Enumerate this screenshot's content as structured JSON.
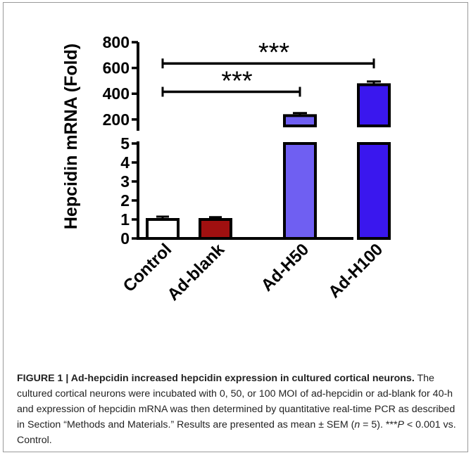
{
  "chart_data": {
    "type": "bar",
    "ylabel": "Hepcidin mRNA (Fold)",
    "categories": [
      "Control",
      "Ad-blank",
      "Ad-H50",
      "Ad-H100"
    ],
    "values": [
      1.0,
      1.0,
      230,
      470
    ],
    "errors": [
      0.15,
      0.12,
      20,
      25
    ],
    "bar_colors": [
      "#ffffff",
      "#a01010",
      "#6f5ff2",
      "#3a17ee"
    ],
    "axis_break": true,
    "lower_segment": {
      "ylim": [
        0,
        5
      ],
      "ticks": [
        "0",
        "1",
        "2",
        "3",
        "4",
        "5"
      ]
    },
    "upper_segment": {
      "ylim": [
        150,
        800
      ],
      "ticks": [
        "200",
        "400",
        "600",
        "800"
      ]
    },
    "annotations": [
      {
        "from": "Control",
        "to": "Ad-H50",
        "label": "***",
        "y": 415
      },
      {
        "from": "Control",
        "to": "Ad-H100",
        "label": "***",
        "y": 635
      }
    ]
  },
  "caption": {
    "label": "FIGURE 1 | Ad-hepcidin increased hepcidin expression in cultured cortical neurons.",
    "t1": " The cultured cortical neurons were incubated with 0, 50, or 100 MOI of ad-hepcidin or ad-blank for 40-h and expression of hepcidin mRNA was then determined by quantitative real-time PCR as described in Section “Methods and Materials.” Results are presented as mean ± SEM (",
    "n": "n",
    "t2": " = 5). ***",
    "p": "P",
    "t3": " < 0.001 vs. Control."
  }
}
